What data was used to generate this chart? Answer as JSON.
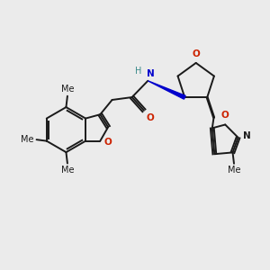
{
  "bg_color": "#ebebeb",
  "bond_color": "#1a1a1a",
  "N_color": "#3a8a8a",
  "O_color": "#cc2200",
  "N_blue_color": "#0000cc",
  "wedge_color": "#0000cc",
  "figsize": [
    3.0,
    3.0
  ],
  "dpi": 100,
  "xlim": [
    0,
    10
  ],
  "ylim": [
    0,
    10
  ]
}
